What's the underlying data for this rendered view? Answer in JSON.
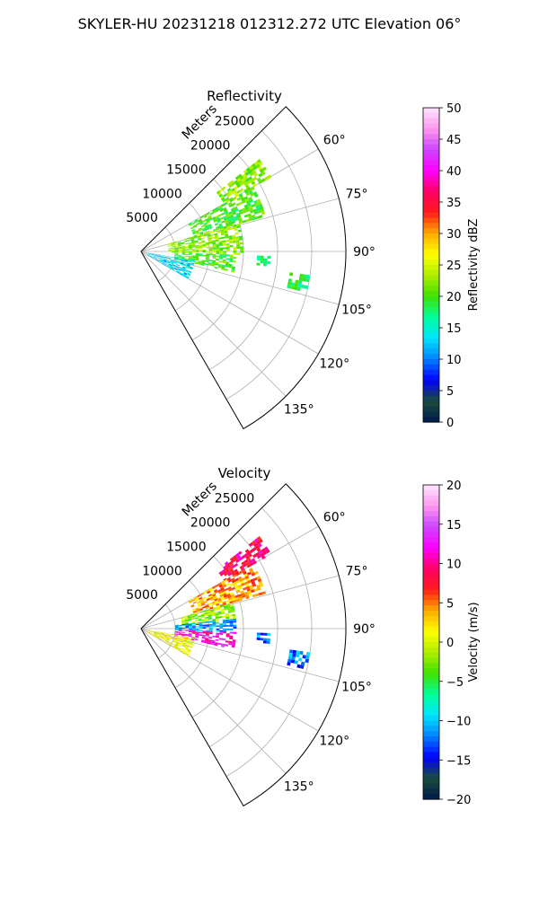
{
  "suptitle": "SKYLER-HU  20231218  012312.272 UTC Elevation 06°",
  "chart_data": [
    {
      "type": "heatmap",
      "subtype": "polar-sector",
      "title": "Reflectivity",
      "radial_label": "Meters",
      "radial_ticks": [
        5000,
        10000,
        15000,
        20000,
        25000
      ],
      "radial_tick_labels": [
        "5000",
        "10000",
        "15000",
        "20000",
        "25000"
      ],
      "r_max": 30000,
      "azimuth_range": [
        45,
        150
      ],
      "azimuth_ticks": [
        60,
        75,
        90,
        105,
        120,
        135
      ],
      "azimuth_tick_labels": [
        "60°",
        "75°",
        "90°",
        "105°",
        "120°",
        "135°"
      ],
      "colorbar": {
        "label": "Reflectivity dBZ",
        "vmin": 0,
        "vmax": 50,
        "ticks": [
          0,
          5,
          10,
          15,
          20,
          25,
          30,
          35,
          40,
          45,
          50
        ],
        "tick_labels": [
          "0",
          "5",
          "10",
          "15",
          "20",
          "25",
          "30",
          "35",
          "40",
          "45",
          "50"
        ],
        "stops": [
          "#001a4d",
          "#1a4d3a",
          "#0000ff",
          "#0080ff",
          "#00e5ff",
          "#00ff99",
          "#40e000",
          "#b0ee00",
          "#ffff00",
          "#ffaa00",
          "#ff1a1a",
          "#ff0066",
          "#ff00ff",
          "#cc44ff",
          "#ff99ee",
          "#ffe5ff"
        ]
      },
      "echo_regions": [
        {
          "az": [
            52,
            60
          ],
          "r": [
            14000,
            22000
          ],
          "value": 22
        },
        {
          "az": [
            60,
            74
          ],
          "r": [
            8000,
            19000
          ],
          "value": 20
        },
        {
          "az": [
            74,
            92
          ],
          "r": [
            4000,
            15000
          ],
          "value": 22
        },
        {
          "az": [
            92,
            102
          ],
          "r": [
            5000,
            14000
          ],
          "value": 20
        },
        {
          "az": [
            100,
            120
          ],
          "r": [
            1000,
            8000
          ],
          "value": 13
        },
        {
          "az": [
            98,
            104
          ],
          "r": [
            22000,
            25000
          ],
          "value": 18
        },
        {
          "az": [
            92,
            96
          ],
          "r": [
            17000,
            19000
          ],
          "value": 18
        }
      ]
    },
    {
      "type": "heatmap",
      "subtype": "polar-sector",
      "title": "Velocity",
      "radial_label": "Meters",
      "radial_ticks": [
        5000,
        10000,
        15000,
        20000,
        25000
      ],
      "radial_tick_labels": [
        "5000",
        "10000",
        "15000",
        "20000",
        "25000"
      ],
      "r_max": 30000,
      "azimuth_range": [
        45,
        150
      ],
      "azimuth_ticks": [
        60,
        75,
        90,
        105,
        120,
        135
      ],
      "azimuth_tick_labels": [
        "60°",
        "75°",
        "90°",
        "105°",
        "120°",
        "135°"
      ],
      "colorbar": {
        "label": "Velocity (m/s)",
        "vmin": -20,
        "vmax": 20,
        "ticks": [
          -20,
          -15,
          -10,
          -5,
          0,
          5,
          10,
          15,
          20
        ],
        "tick_labels": [
          "−20",
          "−15",
          "−10",
          "−5",
          "0",
          "5",
          "10",
          "15",
          "20"
        ],
        "stops": [
          "#001a4d",
          "#1a4d3a",
          "#0000ff",
          "#0080ff",
          "#00e5ff",
          "#00ff99",
          "#40e000",
          "#b0ee00",
          "#ffff00",
          "#ffaa00",
          "#ff1a1a",
          "#ff0066",
          "#ff00ff",
          "#cc44ff",
          "#ff99ee",
          "#ffe5ff"
        ]
      },
      "echo_regions": [
        {
          "az": [
            52,
            60
          ],
          "r": [
            14000,
            22000
          ],
          "value": 9
        },
        {
          "az": [
            60,
            74
          ],
          "r": [
            8000,
            19000
          ],
          "value": 4
        },
        {
          "az": [
            74,
            84
          ],
          "r": [
            6000,
            14000
          ],
          "value": -2
        },
        {
          "az": [
            84,
            92
          ],
          "r": [
            5000,
            14000
          ],
          "value": -11
        },
        {
          "az": [
            92,
            102
          ],
          "r": [
            5000,
            14000
          ],
          "value": 12
        },
        {
          "az": [
            100,
            120
          ],
          "r": [
            1000,
            8000
          ],
          "value": 1
        },
        {
          "az": [
            98,
            104
          ],
          "r": [
            22000,
            25000
          ],
          "value": -12
        },
        {
          "az": [
            92,
            96
          ],
          "r": [
            17000,
            19000
          ],
          "value": -12
        }
      ]
    }
  ]
}
